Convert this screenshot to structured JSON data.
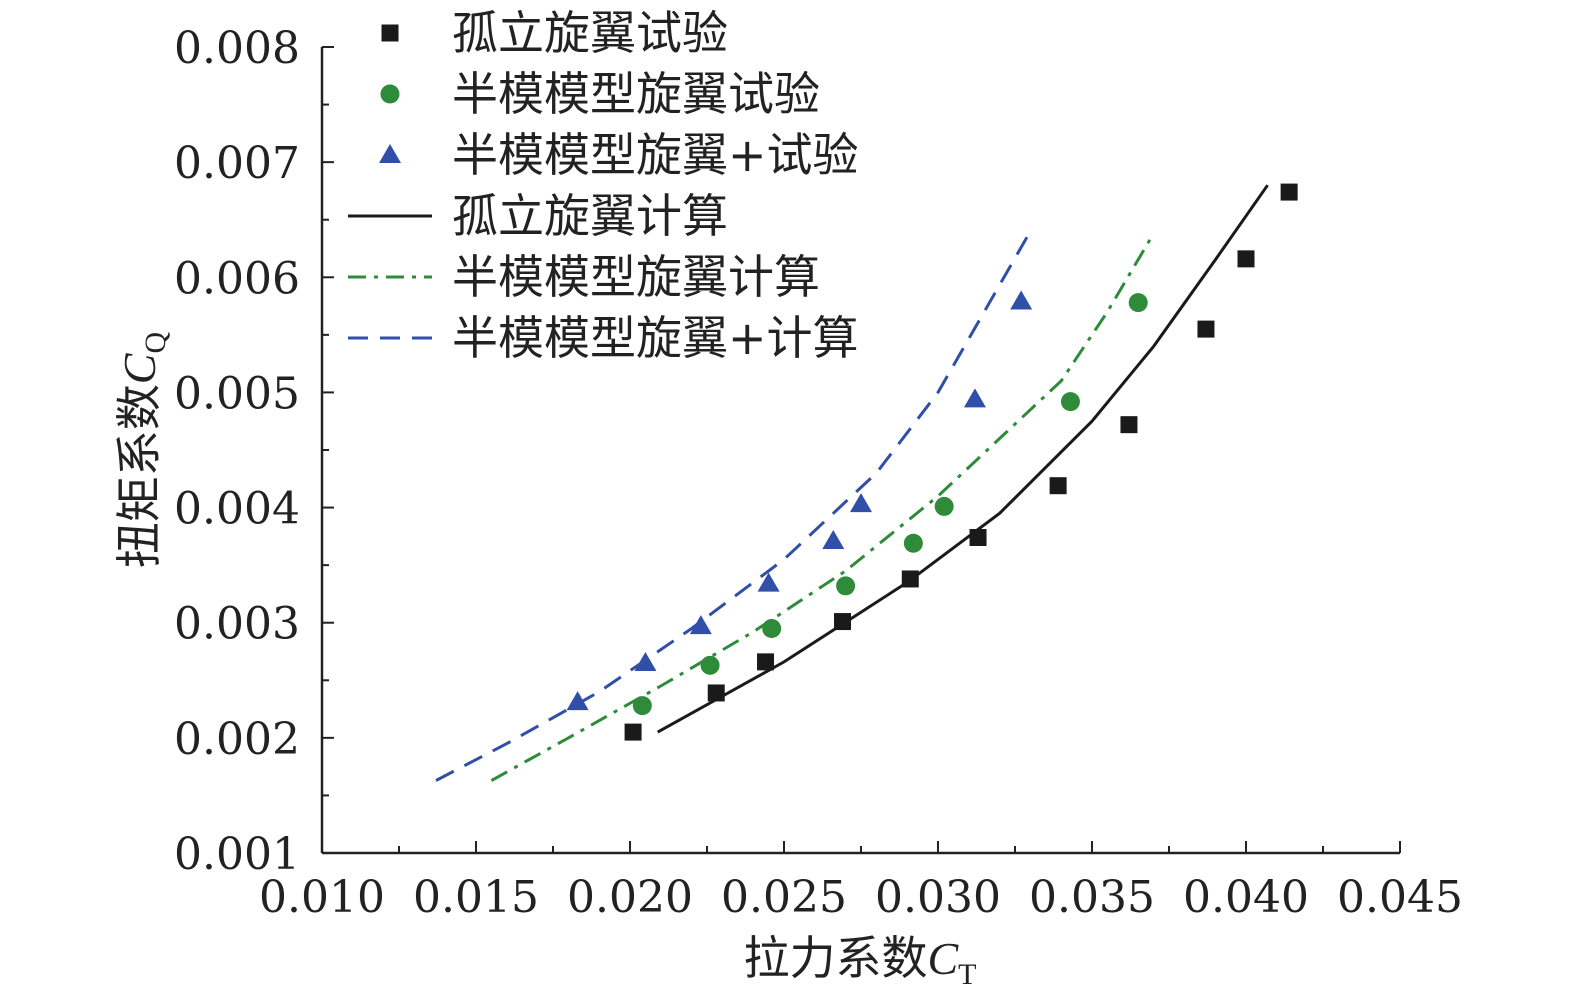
{
  "chart_data": {
    "type": "scatter",
    "xlabel": "拉力系数",
    "xlabel_var": "C",
    "xlabel_sub": "T",
    "ylabel": "扭矩系数",
    "ylabel_var": "C",
    "ylabel_sub": "Q",
    "xlim": [
      0.01,
      0.045
    ],
    "ylim": [
      0.001,
      0.008
    ],
    "xticks": [
      "0.010",
      "0.015",
      "0.020",
      "0.025",
      "0.030",
      "0.035",
      "0.040",
      "0.045"
    ],
    "yticks": [
      "0.001",
      "0.002",
      "0.003",
      "0.004",
      "0.005",
      "0.006",
      "0.007",
      "0.008"
    ],
    "legend_position": "top-left",
    "series": [
      {
        "name": "孤立旋翼试验",
        "kind": "marker",
        "marker": "square",
        "color": "#1a1a1a",
        "points": [
          [
            0.0201,
            0.00205
          ],
          [
            0.0228,
            0.00239
          ],
          [
            0.0244,
            0.00266
          ],
          [
            0.0269,
            0.00301
          ],
          [
            0.0291,
            0.00338
          ],
          [
            0.0313,
            0.00374
          ],
          [
            0.0339,
            0.00419
          ],
          [
            0.0362,
            0.00472
          ],
          [
            0.0387,
            0.00555
          ],
          [
            0.04,
            0.00616
          ],
          [
            0.0414,
            0.00674
          ]
        ]
      },
      {
        "name": "半模模型旋翼试验",
        "kind": "marker",
        "marker": "circle",
        "color": "#2e8b3a",
        "points": [
          [
            0.0204,
            0.00228
          ],
          [
            0.0226,
            0.00263
          ],
          [
            0.0246,
            0.00295
          ],
          [
            0.027,
            0.00332
          ],
          [
            0.0292,
            0.00369
          ],
          [
            0.0302,
            0.00401
          ],
          [
            0.0343,
            0.00492
          ],
          [
            0.0365,
            0.00578
          ]
        ]
      },
      {
        "name": "半模模型旋翼+试验",
        "kind": "marker",
        "marker": "triangle",
        "color": "#2f4fa8",
        "points": [
          [
            0.0183,
            0.00231
          ],
          [
            0.0205,
            0.00265
          ],
          [
            0.0223,
            0.00297
          ],
          [
            0.0245,
            0.00334
          ],
          [
            0.0266,
            0.00371
          ],
          [
            0.0275,
            0.00403
          ],
          [
            0.0312,
            0.00494
          ],
          [
            0.0327,
            0.00579
          ]
        ]
      },
      {
        "name": "孤立旋翼计算",
        "kind": "line",
        "dash": "solid",
        "color": "#1a1a1a",
        "points": [
          [
            0.0209,
            0.00205
          ],
          [
            0.025,
            0.00266
          ],
          [
            0.029,
            0.00335
          ],
          [
            0.032,
            0.00395
          ],
          [
            0.035,
            0.00475
          ],
          [
            0.037,
            0.0054
          ],
          [
            0.039,
            0.00615
          ],
          [
            0.0407,
            0.0068
          ]
        ]
      },
      {
        "name": "半模模型旋翼计算",
        "kind": "line",
        "dash": "dashdot",
        "color": "#2e8b3a",
        "points": [
          [
            0.0155,
            0.00163
          ],
          [
            0.018,
            0.002
          ],
          [
            0.021,
            0.00245
          ],
          [
            0.024,
            0.00292
          ],
          [
            0.027,
            0.00345
          ],
          [
            0.03,
            0.0041
          ],
          [
            0.032,
            0.0046
          ],
          [
            0.034,
            0.0051
          ],
          [
            0.0355,
            0.0057
          ],
          [
            0.037,
            0.00638
          ]
        ]
      },
      {
        "name": "半模模型旋翼+计算",
        "kind": "line",
        "dash": "dashed",
        "color": "#2f4fa8",
        "points": [
          [
            0.0137,
            0.00163
          ],
          [
            0.016,
            0.00195
          ],
          [
            0.019,
            0.0024
          ],
          [
            0.022,
            0.00295
          ],
          [
            0.025,
            0.00355
          ],
          [
            0.028,
            0.0043
          ],
          [
            0.03,
            0.005
          ],
          [
            0.0315,
            0.0057
          ],
          [
            0.033,
            0.0064
          ]
        ]
      }
    ]
  }
}
